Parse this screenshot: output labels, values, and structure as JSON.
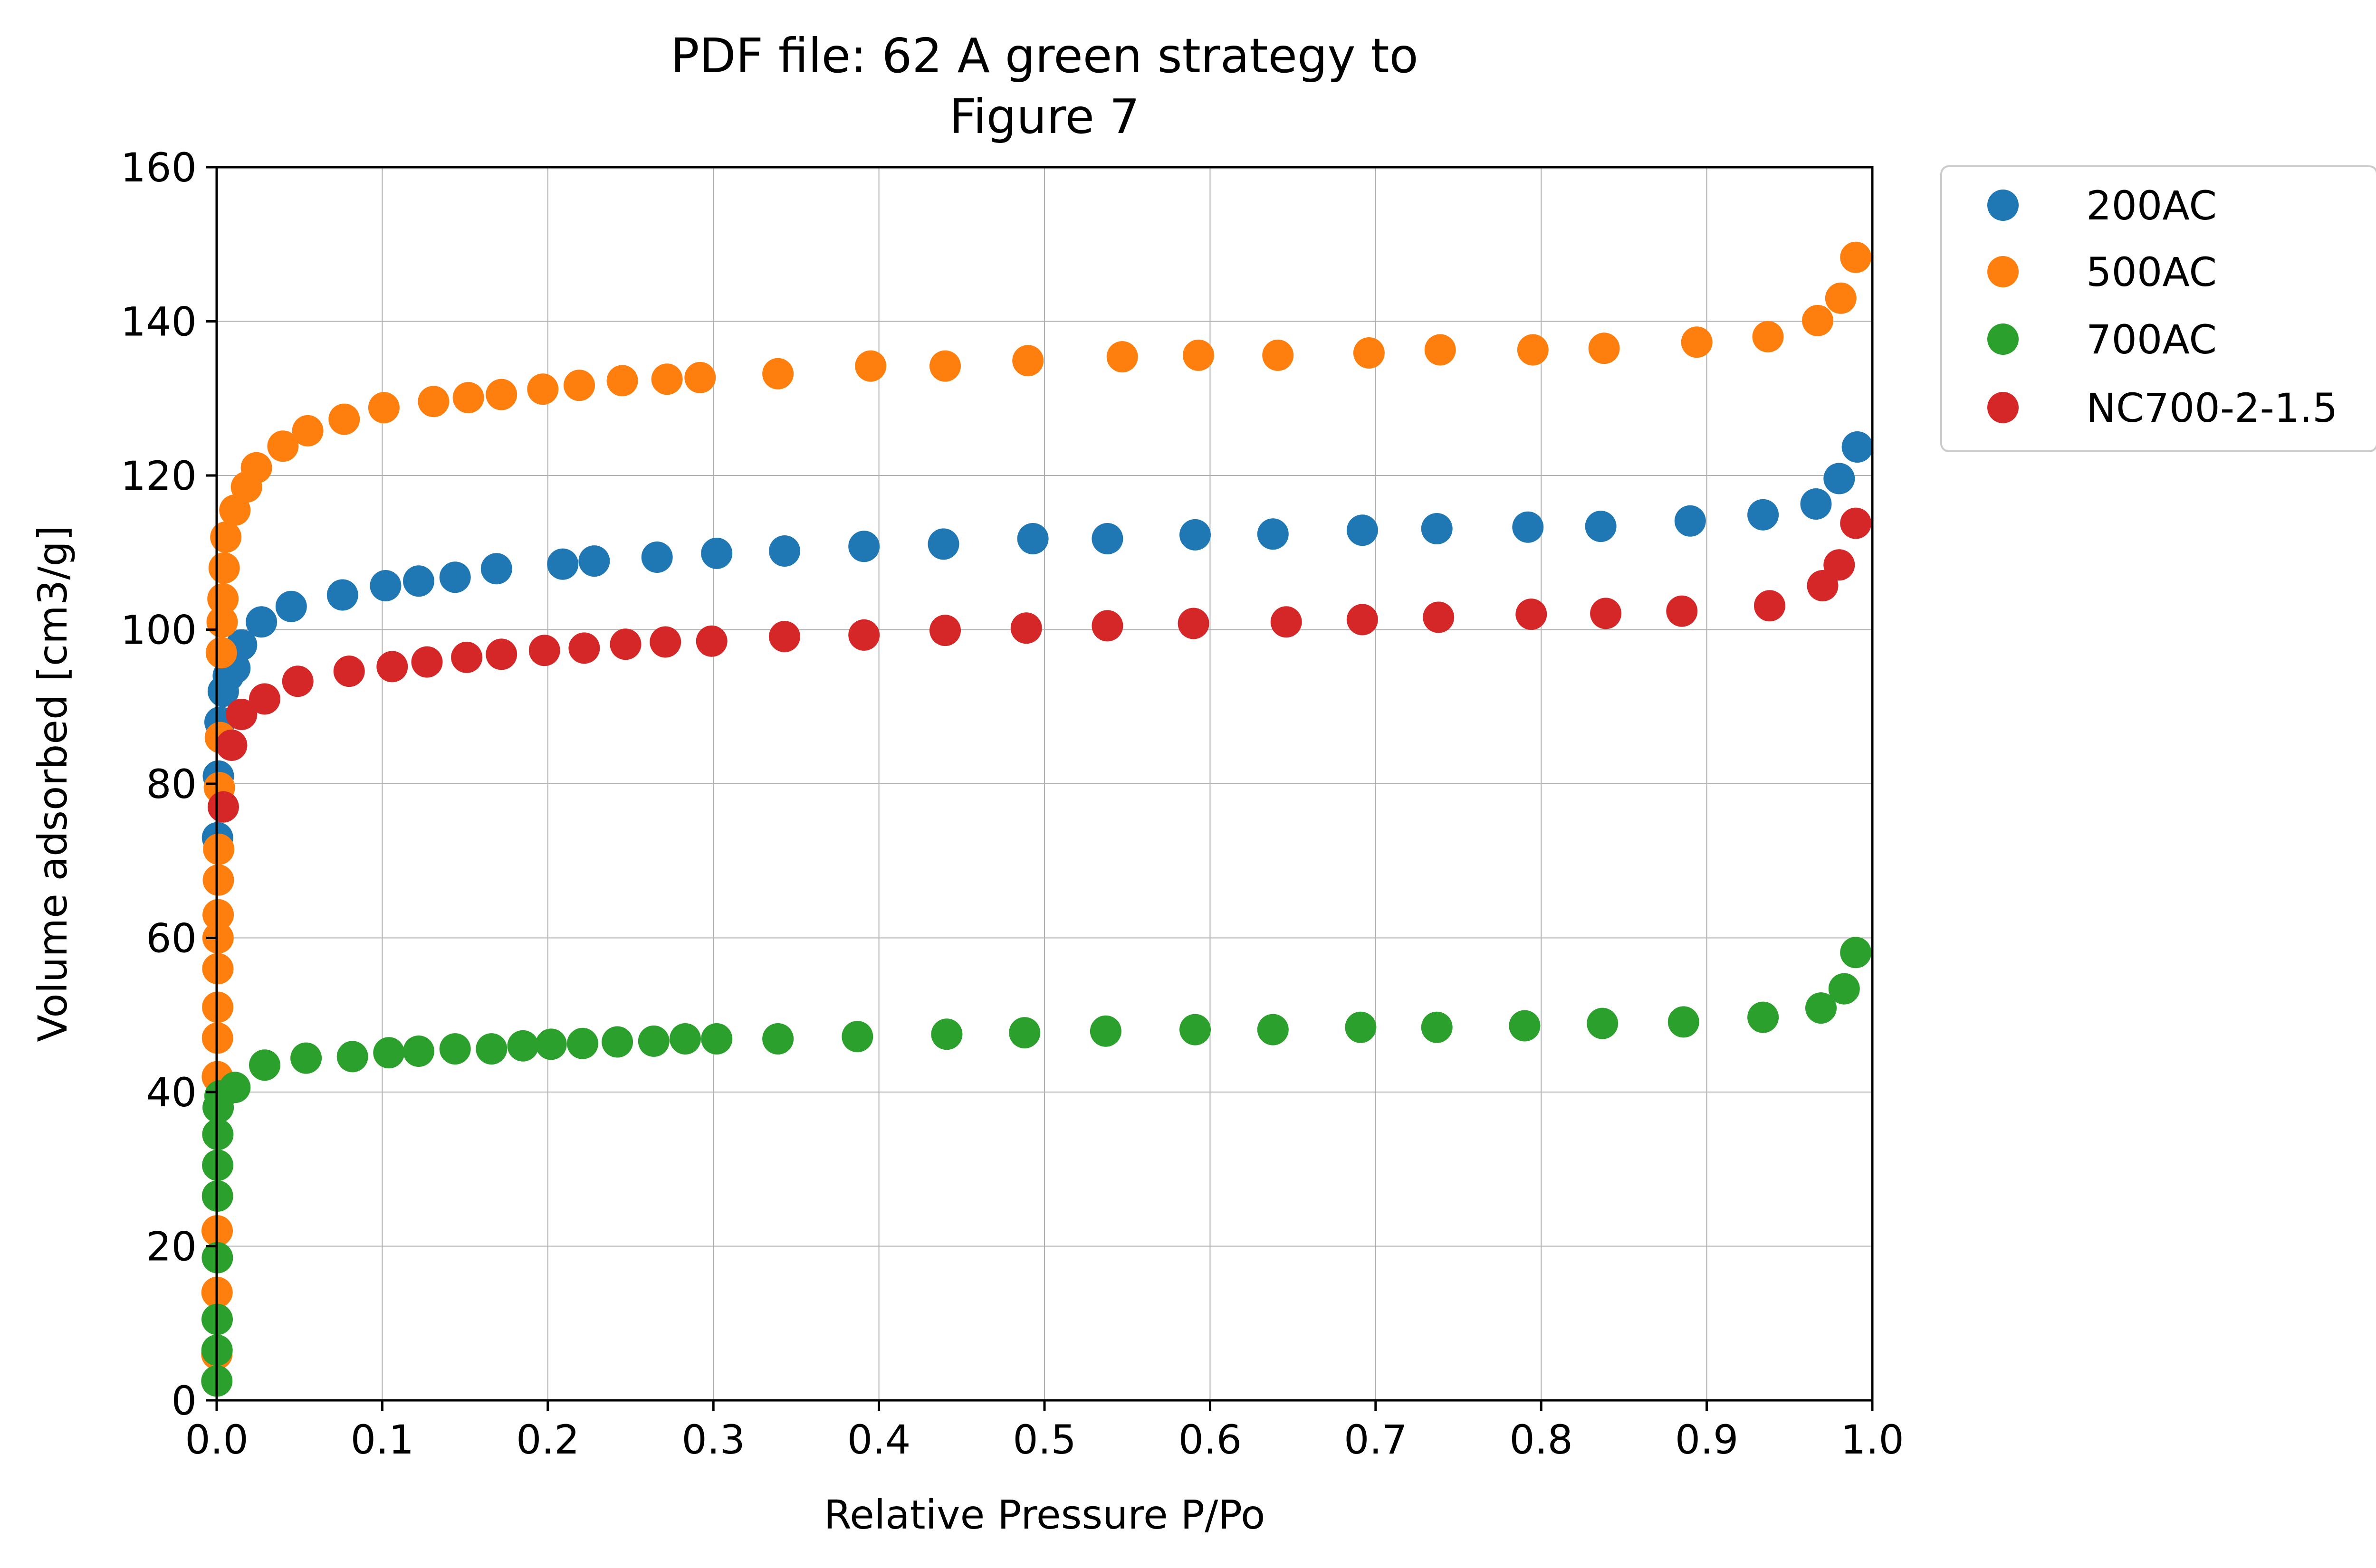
{
  "chart_data": {
    "type": "scatter",
    "title_lines": [
      "PDF file: 62 A green strategy to",
      "Figure 7"
    ],
    "xlabel": "Relative Pressure P/Po",
    "ylabel": "Volume adsorbed [cm3/g]",
    "xlim": [
      0.0,
      1.0
    ],
    "ylim": [
      0,
      160
    ],
    "xticks": [
      0.0,
      0.1,
      0.2,
      0.3,
      0.4,
      0.5,
      0.6,
      0.7,
      0.8,
      0.9,
      1.0
    ],
    "xtick_labels": [
      "0.0",
      "0.1",
      "0.2",
      "0.3",
      "0.4",
      "0.5",
      "0.6",
      "0.7",
      "0.8",
      "0.9",
      "1.0"
    ],
    "yticks": [
      0,
      20,
      40,
      60,
      80,
      100,
      120,
      140,
      160
    ],
    "ytick_labels": [
      "0",
      "20",
      "40",
      "60",
      "80",
      "100",
      "120",
      "140",
      "160"
    ],
    "grid": true,
    "legend_position": "outside-top-right",
    "series": [
      {
        "name": "200AC",
        "color": "#1f77b4",
        "points": [
          [
            0.0005,
            73
          ],
          [
            0.001,
            81
          ],
          [
            0.002,
            88
          ],
          [
            0.004,
            92
          ],
          [
            0.007,
            94
          ],
          [
            0.011,
            95
          ],
          [
            0.015,
            98
          ],
          [
            0.027,
            101
          ],
          [
            0.045,
            103
          ],
          [
            0.076,
            104.5
          ],
          [
            0.102,
            105.7
          ],
          [
            0.122,
            106.3
          ],
          [
            0.144,
            106.8
          ],
          [
            0.169,
            107.9
          ],
          [
            0.209,
            108.5
          ],
          [
            0.228,
            108.9
          ],
          [
            0.266,
            109.4
          ],
          [
            0.302,
            109.9
          ],
          [
            0.343,
            110.2
          ],
          [
            0.391,
            110.8
          ],
          [
            0.439,
            111.1
          ],
          [
            0.493,
            111.8
          ],
          [
            0.538,
            111.8
          ],
          [
            0.591,
            112.3
          ],
          [
            0.638,
            112.4
          ],
          [
            0.692,
            112.9
          ],
          [
            0.737,
            113.1
          ],
          [
            0.792,
            113.3
          ],
          [
            0.836,
            113.4
          ],
          [
            0.89,
            114.1
          ],
          [
            0.934,
            114.9
          ],
          [
            0.966,
            116.3
          ],
          [
            0.98,
            119.6
          ],
          [
            0.991,
            123.7
          ]
        ]
      },
      {
        "name": "500AC",
        "color": "#ff7f0e",
        "points": [
          [
            0.0001,
            6
          ],
          [
            0.0002,
            14
          ],
          [
            0.0003,
            22
          ],
          [
            0.0004,
            42
          ],
          [
            0.0005,
            47
          ],
          [
            0.0006,
            51
          ],
          [
            0.0007,
            56
          ],
          [
            0.0008,
            60
          ],
          [
            0.0009,
            63
          ],
          [
            0.001,
            67.5
          ],
          [
            0.0012,
            71.5
          ],
          [
            0.0016,
            79.5
          ],
          [
            0.0022,
            86
          ],
          [
            0.0028,
            97
          ],
          [
            0.0033,
            101
          ],
          [
            0.0038,
            104
          ],
          [
            0.0045,
            108
          ],
          [
            0.0055,
            112
          ],
          [
            0.011,
            115.5
          ],
          [
            0.018,
            118.5
          ],
          [
            0.024,
            121
          ],
          [
            0.04,
            123.8
          ],
          [
            0.055,
            125.8
          ],
          [
            0.077,
            127.3
          ],
          [
            0.101,
            128.8
          ],
          [
            0.131,
            129.6
          ],
          [
            0.152,
            130.1
          ],
          [
            0.172,
            130.5
          ],
          [
            0.197,
            131.2
          ],
          [
            0.219,
            131.7
          ],
          [
            0.245,
            132.3
          ],
          [
            0.272,
            132.5
          ],
          [
            0.292,
            132.7
          ],
          [
            0.339,
            133.2
          ],
          [
            0.395,
            134.2
          ],
          [
            0.44,
            134.2
          ],
          [
            0.49,
            134.9
          ],
          [
            0.547,
            135.4
          ],
          [
            0.593,
            135.6
          ],
          [
            0.641,
            135.6
          ],
          [
            0.696,
            135.9
          ],
          [
            0.739,
            136.3
          ],
          [
            0.795,
            136.3
          ],
          [
            0.838,
            136.5
          ],
          [
            0.894,
            137.3
          ],
          [
            0.937,
            138
          ],
          [
            0.967,
            140.1
          ],
          [
            0.981,
            143
          ],
          [
            0.99,
            148.3
          ]
        ]
      },
      {
        "name": "700AC",
        "color": "#2ca02c",
        "points": [
          [
            0.0001,
            2.5
          ],
          [
            0.0002,
            6.5
          ],
          [
            0.0003,
            10.5
          ],
          [
            0.0004,
            18.5
          ],
          [
            0.0005,
            26.5
          ],
          [
            0.0006,
            30.5
          ],
          [
            0.0007,
            34.5
          ],
          [
            0.0009,
            38
          ],
          [
            0.002,
            39.5
          ],
          [
            0.011,
            40.6
          ],
          [
            0.029,
            43.5
          ],
          [
            0.054,
            44.4
          ],
          [
            0.082,
            44.6
          ],
          [
            0.104,
            45.1
          ],
          [
            0.122,
            45.3
          ],
          [
            0.144,
            45.6
          ],
          [
            0.166,
            45.6
          ],
          [
            0.185,
            46
          ],
          [
            0.202,
            46.2
          ],
          [
            0.221,
            46.3
          ],
          [
            0.242,
            46.5
          ],
          [
            0.264,
            46.6
          ],
          [
            0.283,
            46.9
          ],
          [
            0.302,
            46.9
          ],
          [
            0.339,
            46.9
          ],
          [
            0.387,
            47.2
          ],
          [
            0.441,
            47.5
          ],
          [
            0.488,
            47.7
          ],
          [
            0.537,
            47.9
          ],
          [
            0.591,
            48.1
          ],
          [
            0.638,
            48.1
          ],
          [
            0.691,
            48.4
          ],
          [
            0.737,
            48.4
          ],
          [
            0.79,
            48.6
          ],
          [
            0.837,
            48.9
          ],
          [
            0.886,
            49.1
          ],
          [
            0.934,
            49.7
          ],
          [
            0.969,
            50.9
          ],
          [
            0.983,
            53.4
          ],
          [
            0.99,
            58.1
          ]
        ]
      },
      {
        "name": "NC700-2-1.5",
        "color": "#d62728",
        "points": [
          [
            0.004,
            77
          ],
          [
            0.009,
            85
          ],
          [
            0.015,
            89
          ],
          [
            0.029,
            91
          ],
          [
            0.049,
            93.3
          ],
          [
            0.08,
            94.6
          ],
          [
            0.106,
            95.2
          ],
          [
            0.127,
            95.8
          ],
          [
            0.151,
            96.4
          ],
          [
            0.172,
            96.8
          ],
          [
            0.198,
            97.3
          ],
          [
            0.222,
            97.6
          ],
          [
            0.247,
            98.1
          ],
          [
            0.271,
            98.4
          ],
          [
            0.299,
            98.5
          ],
          [
            0.343,
            99.1
          ],
          [
            0.391,
            99.3
          ],
          [
            0.44,
            99.9
          ],
          [
            0.489,
            100.2
          ],
          [
            0.538,
            100.5
          ],
          [
            0.59,
            100.8
          ],
          [
            0.646,
            101
          ],
          [
            0.692,
            101.3
          ],
          [
            0.738,
            101.6
          ],
          [
            0.794,
            102
          ],
          [
            0.839,
            102.1
          ],
          [
            0.885,
            102.4
          ],
          [
            0.938,
            103.1
          ],
          [
            0.97,
            105.7
          ],
          [
            0.98,
            108.4
          ],
          [
            0.99,
            113.8
          ]
        ]
      }
    ]
  }
}
